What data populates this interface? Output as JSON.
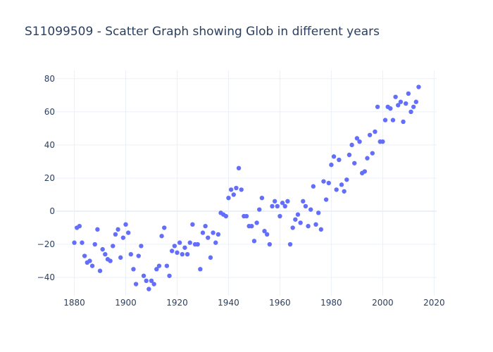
{
  "chart_data": {
    "type": "scatter",
    "title": "S11099509 - Scatter Graph showing Glob in different years",
    "xlabel": "",
    "ylabel": "",
    "xlim": [
      1873,
      2021
    ],
    "ylim": [
      -51,
      85
    ],
    "xticks": [
      1880,
      1900,
      1920,
      1940,
      1960,
      1980,
      2000,
      2020
    ],
    "yticks": [
      -40,
      -20,
      0,
      20,
      40,
      60,
      80
    ],
    "grid": true,
    "legend": "none",
    "marker_color": "#636efa",
    "x": [
      1880,
      1881,
      1882,
      1883,
      1884,
      1885,
      1886,
      1887,
      1888,
      1889,
      1890,
      1891,
      1892,
      1893,
      1894,
      1895,
      1896,
      1897,
      1898,
      1899,
      1900,
      1901,
      1902,
      1903,
      1904,
      1905,
      1906,
      1907,
      1908,
      1909,
      1910,
      1911,
      1912,
      1913,
      1914,
      1915,
      1916,
      1917,
      1918,
      1919,
      1920,
      1921,
      1922,
      1923,
      1924,
      1925,
      1926,
      1927,
      1928,
      1929,
      1930,
      1931,
      1932,
      1933,
      1934,
      1935,
      1936,
      1937,
      1938,
      1939,
      1940,
      1941,
      1942,
      1943,
      1944,
      1945,
      1946,
      1947,
      1948,
      1949,
      1950,
      1951,
      1952,
      1953,
      1954,
      1955,
      1956,
      1957,
      1958,
      1959,
      1960,
      1961,
      1962,
      1963,
      1964,
      1965,
      1966,
      1967,
      1968,
      1969,
      1970,
      1971,
      1972,
      1973,
      1974,
      1975,
      1976,
      1977,
      1978,
      1979,
      1980,
      1981,
      1982,
      1983,
      1984,
      1985,
      1986,
      1987,
      1988,
      1989,
      1990,
      1991,
      1992,
      1993,
      1994,
      1995,
      1996,
      1997,
      1998,
      1999,
      2000,
      2001,
      2002,
      2003,
      2004,
      2005,
      2006,
      2007,
      2008,
      2009,
      2010,
      2011,
      2012,
      2013,
      2014
    ],
    "y": [
      -19,
      -10,
      -9,
      -19,
      -27,
      -31,
      -30,
      -33,
      -20,
      -11,
      -36,
      -23,
      -26,
      -29,
      -30,
      -21,
      -14,
      -11,
      -28,
      -16,
      -8,
      -13,
      -26,
      -35,
      -44,
      -27,
      -21,
      -39,
      -42,
      -47,
      -42,
      -44,
      -35,
      -33,
      -15,
      -10,
      -33,
      -39,
      -24,
      -21,
      -25,
      -19,
      -26,
      -22,
      -26,
      -19,
      -8,
      -20,
      -20,
      -35,
      -13,
      -9,
      -16,
      -28,
      -13,
      -19,
      -14,
      -1,
      -2,
      -3,
      8,
      13,
      10,
      14,
      26,
      13,
      -3,
      -3,
      -9,
      -9,
      -18,
      -7,
      1,
      8,
      -12,
      -14,
      -20,
      3,
      6,
      3,
      -3,
      5,
      3,
      6,
      -20,
      -10,
      -5,
      -2,
      -7,
      6,
      3,
      -9,
      1,
      15,
      -8,
      -1,
      -11,
      18,
      7,
      17,
      28,
      33,
      13,
      31,
      16,
      12,
      19,
      34,
      40,
      29,
      44,
      42,
      23,
      24,
      32,
      46,
      35,
      48,
      63,
      42,
      42,
      55,
      63,
      62,
      55,
      69,
      64,
      66,
      54,
      65,
      71,
      60,
      63,
      66,
      75
    ]
  }
}
